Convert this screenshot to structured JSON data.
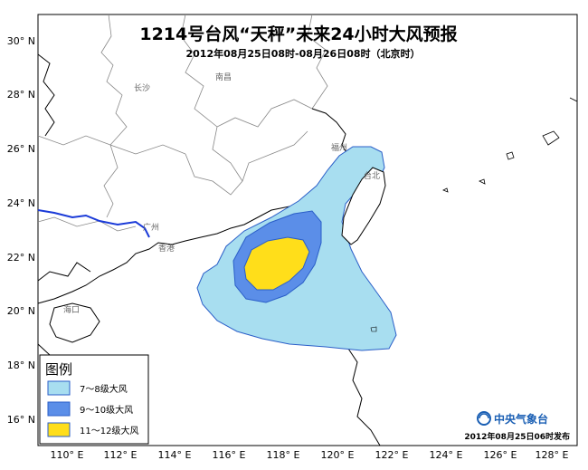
{
  "header": {
    "title": "1214号台风“天秤”未来24小时大风预报",
    "subtitle": "2012年08月25日08时-08月26日08时（北京时）"
  },
  "axes": {
    "lat_labels": [
      "30° N",
      "28° N",
      "26° N",
      "24° N",
      "22° N",
      "20° N",
      "18° N",
      "16° N"
    ],
    "lon_labels": [
      "110° E",
      "112° E",
      "114° E",
      "116° E",
      "118° E",
      "120° E",
      "122° E",
      "124° E",
      "126° E",
      "128° E"
    ]
  },
  "places": {
    "changsha": "长沙",
    "nanchang": "南昌",
    "fuzhou": "福州",
    "taibei": "台北",
    "guangzhou": "广州",
    "hong_kong": "香港",
    "haikou": "海口"
  },
  "legend": {
    "title": "图例",
    "items": [
      {
        "label": "7～8级大风",
        "color": "#a8def0"
      },
      {
        "label": "9～10级大风",
        "color": "#5b8ee8"
      },
      {
        "label": "11～12级大风",
        "color": "#ffde1a"
      }
    ]
  },
  "publisher": {
    "name": "中央气象台",
    "date": "2012年08月25日06时发布"
  },
  "colors": {
    "zone_outline": "#2a5ec8",
    "border_line": "#000000",
    "province_line": "#888888",
    "river": "#1a3ad8"
  }
}
